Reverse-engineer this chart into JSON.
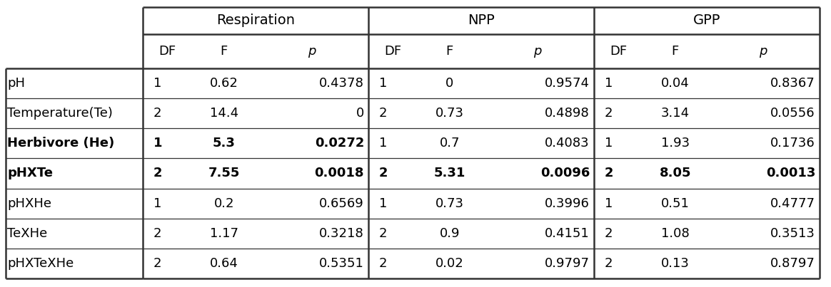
{
  "group_headers": [
    "Respiration",
    "NPP",
    "GPP"
  ],
  "col_headers": [
    "DF",
    "F",
    "p",
    "DF",
    "F",
    "p",
    "DF",
    "F",
    "p"
  ],
  "col_header_italic": [
    false,
    false,
    true,
    false,
    false,
    true,
    false,
    false,
    true
  ],
  "col_header_bold": [
    false,
    false,
    false,
    false,
    false,
    false,
    false,
    false,
    false
  ],
  "row_labels": [
    "pH",
    "Temperature(Te)",
    "Herbivore (He)",
    "pHXTe",
    "pHXHe",
    "TeXHe",
    "pHXTeXHe"
  ],
  "row_bold": [
    false,
    false,
    true,
    true,
    false,
    false,
    false
  ],
  "data": [
    [
      "1",
      "0.62",
      "0.4378",
      "1",
      "0",
      "0.9574",
      "1",
      "0.04",
      "0.8367"
    ],
    [
      "2",
      "14.4",
      "0",
      "2",
      "0.73",
      "0.4898",
      "2",
      "3.14",
      "0.0556"
    ],
    [
      "1",
      "5.3",
      "0.0272",
      "1",
      "0.7",
      "0.4083",
      "1",
      "1.93",
      "0.1736"
    ],
    [
      "2",
      "7.55",
      "0.0018",
      "2",
      "5.31",
      "0.0096",
      "2",
      "8.05",
      "0.0013"
    ],
    [
      "1",
      "0.2",
      "0.6569",
      "1",
      "0.73",
      "0.3996",
      "1",
      "0.51",
      "0.4777"
    ],
    [
      "2",
      "1.17",
      "0.3218",
      "2",
      "0.9",
      "0.4151",
      "2",
      "1.08",
      "0.3513"
    ],
    [
      "2",
      "0.64",
      "0.5351",
      "2",
      "0.02",
      "0.9797",
      "2",
      "0.13",
      "0.8797"
    ]
  ],
  "cell_bold": [
    [
      false,
      false,
      false,
      false,
      false,
      false,
      false,
      false,
      false
    ],
    [
      false,
      false,
      false,
      false,
      false,
      false,
      false,
      false,
      false
    ],
    [
      true,
      true,
      true,
      false,
      false,
      false,
      false,
      false,
      false
    ],
    [
      true,
      true,
      true,
      true,
      true,
      true,
      true,
      true,
      true
    ],
    [
      false,
      false,
      false,
      false,
      false,
      false,
      false,
      false,
      false
    ],
    [
      false,
      false,
      false,
      false,
      false,
      false,
      false,
      false,
      false
    ],
    [
      false,
      false,
      false,
      false,
      false,
      false,
      false,
      false,
      false
    ]
  ],
  "background_color": "#ffffff",
  "text_color": "#000000",
  "line_color": "#000000",
  "fontsize_group": 14,
  "fontsize_header": 13,
  "fontsize_data": 13,
  "fontsize_label": 13
}
